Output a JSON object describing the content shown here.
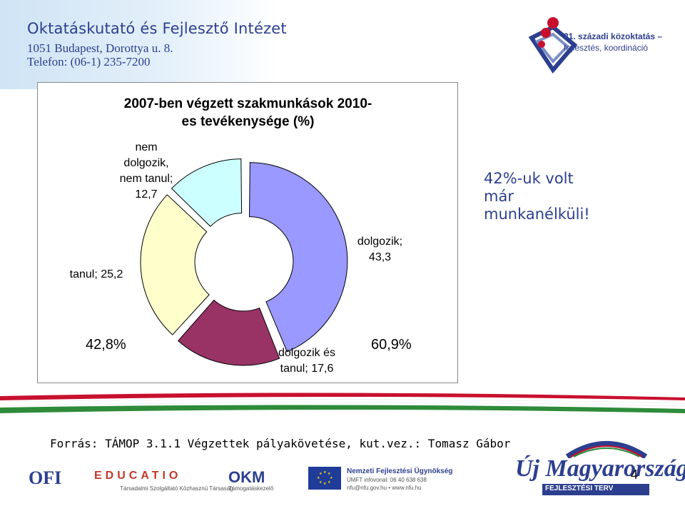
{
  "header": {
    "institution": "Oktatáskutató és Fejlesztő Intézet",
    "address": "1051 Budapest, Dorottya u. 8.",
    "phone": "Telefon: (06-1) 235-7200",
    "badge_line1": "21. századi közoktatás –",
    "badge_line2": "fejlesztés, koordináció"
  },
  "chart_data": {
    "type": "pie",
    "variant": "donut",
    "title": "2007-ben végzett szakmunkások 2010-es tevékenysége (%)",
    "title_line1": "2007-ben végzett szakmunkások 2010-",
    "title_line2": "es tevékenysége (%)",
    "categories": [
      "dolgozik",
      "dolgozik és tanul",
      "tanul",
      "nem dolgozik, nem tanul"
    ],
    "values": [
      43.3,
      17.6,
      25.2,
      12.7
    ],
    "colors": [
      "#9999ff",
      "#993366",
      "#ffffcc",
      "#ccffff"
    ],
    "labels": {
      "dolgozik_line1": "dolgozik;",
      "dolgozik_line2": "43,3",
      "dt_line1": "dolgozik és",
      "dt_line2": "tanul; 17,6",
      "tanul": "tanul; 25,2",
      "nem_line1": "nem",
      "nem_line2": "dolgozik,",
      "nem_line3": "nem tanul;",
      "nem_line4": "12,7"
    },
    "annotations": [
      "42,8%",
      "60,9%"
    ]
  },
  "note": {
    "line1": "42%-uk volt",
    "line2": "már",
    "line3": "munkanélküli!"
  },
  "source": "Forrás: TÁMOP 3.1.1 Végzettek pályakövetése, kut.vez.: Tomasz Gábor",
  "footer": {
    "ofi": "OFI",
    "educatio": "EDUCATIO",
    "educatio_sub": "Társadalmi Szolgáltató Közhasznú Társaság",
    "okm": "OKM",
    "okm_sub": "Támogatáskezelő",
    "nfu_name": "Nemzeti Fejlesztési Ügynökség",
    "nfu_line2": "ÚMFT infovonal: 06 40 638 638",
    "nfu_line3": "nfu@nfu.gov.hu • www.nfu.hu",
    "umft": "Új Magyarország",
    "umft_sub": "FEJLESZTÉSI TERV",
    "page_number": "4"
  }
}
